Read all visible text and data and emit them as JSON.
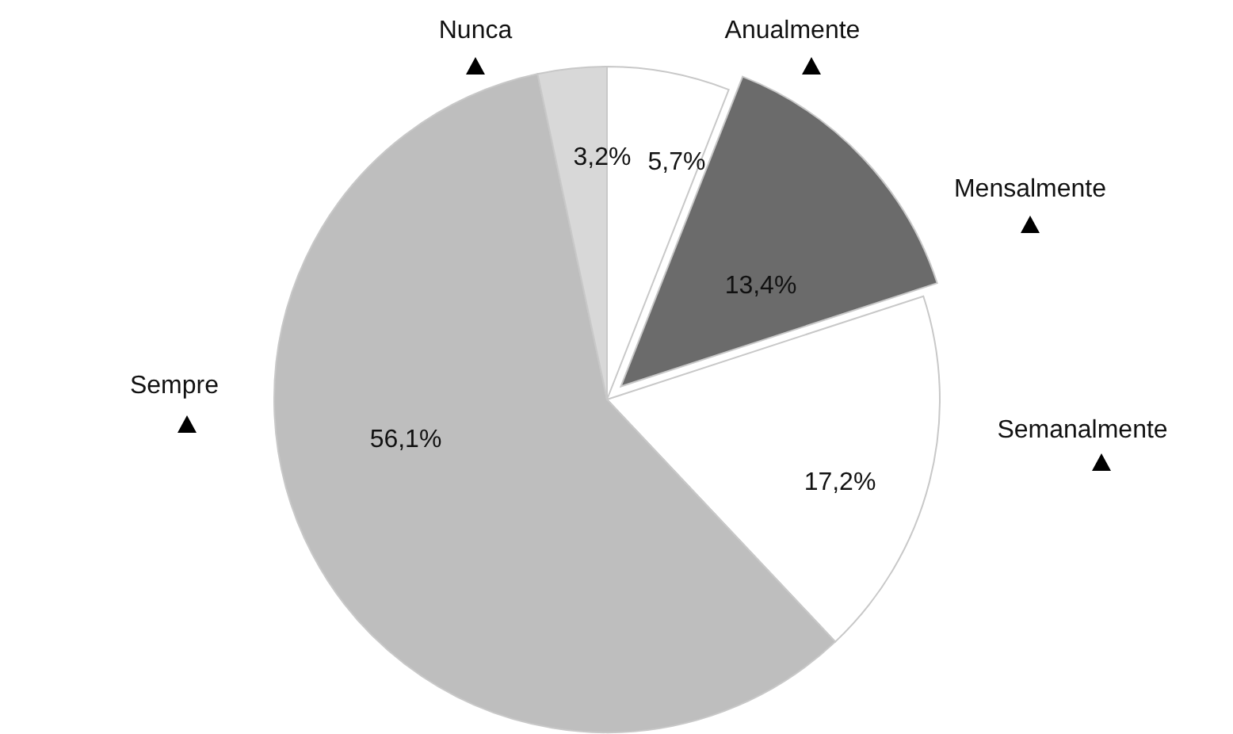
{
  "chart_data": {
    "type": "pie",
    "categories": [
      "Anualmente",
      "Mensalmente",
      "Semanalmente",
      "Sempre",
      "Nunca"
    ],
    "values": [
      5.7,
      13.4,
      17.2,
      56.1,
      3.2
    ],
    "value_labels": [
      "5,7%",
      "13,4%",
      "17,2%",
      "56,1%",
      "3,2%"
    ],
    "colors": [
      "#ffffff",
      "#6b6b6b",
      "#ffffff",
      "#bebebe",
      "#d8d8d8"
    ]
  }
}
